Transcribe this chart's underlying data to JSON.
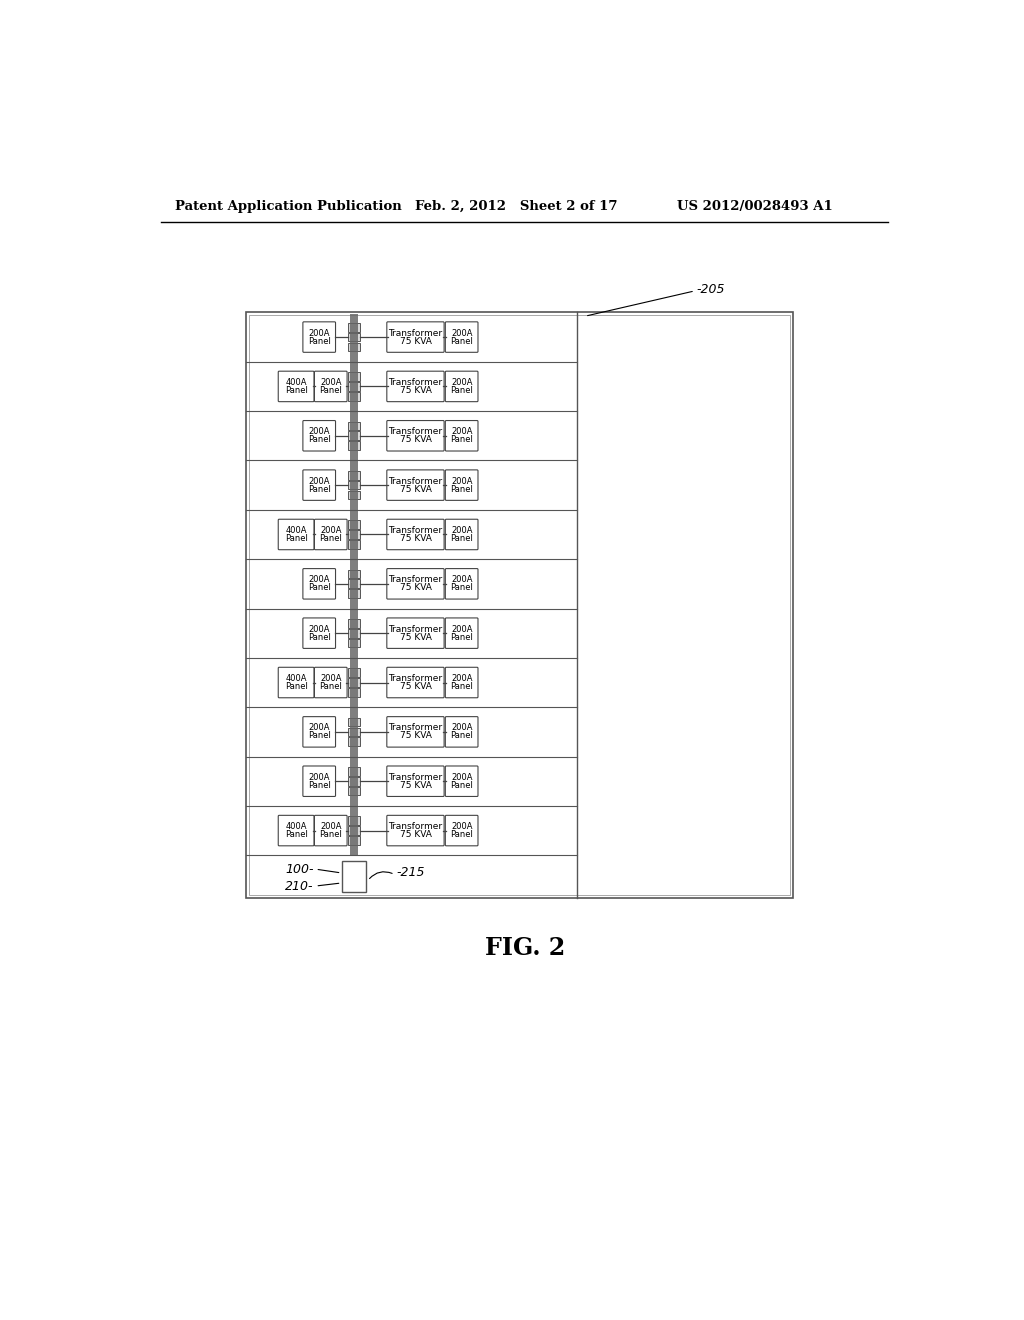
{
  "header_left": "Patent Application Publication",
  "header_mid": "Feb. 2, 2012   Sheet 2 of 17",
  "header_right": "US 2012/0028493 A1",
  "fig_label": "FIG. 2",
  "ref_205": "-205",
  "ref_100": "100-",
  "ref_210": "210-",
  "ref_215": "-215",
  "rows": [
    {
      "has_400a": false
    },
    {
      "has_400a": true
    },
    {
      "has_400a": false
    },
    {
      "has_400a": false
    },
    {
      "has_400a": true
    },
    {
      "has_400a": false
    },
    {
      "has_400a": false
    },
    {
      "has_400a": true
    },
    {
      "has_400a": false
    },
    {
      "has_400a": false
    },
    {
      "has_400a": true
    }
  ],
  "bg_color": "#ffffff"
}
